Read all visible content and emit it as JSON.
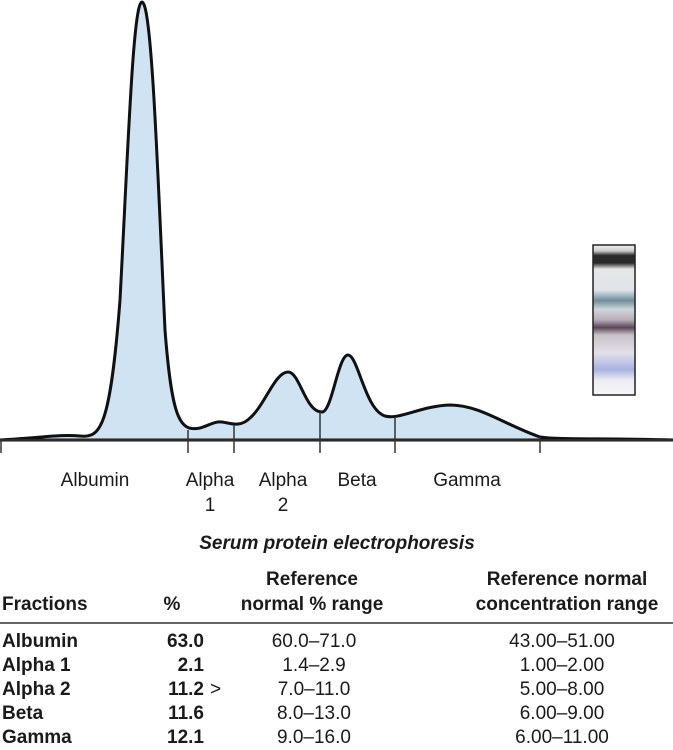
{
  "figure": {
    "fraction_labels": [
      [
        "Albumin"
      ],
      [
        "Alpha",
        "1"
      ],
      [
        "Alpha",
        "2"
      ],
      [
        "Beta"
      ],
      [
        "Gamma"
      ]
    ],
    "caption": "Serum protein electrophoresis"
  },
  "table": {
    "header": {
      "fractions": "Fractions",
      "percent": "%",
      "reference_percent": [
        "Reference",
        "normal % range"
      ],
      "reference_concentration": [
        "Reference normal",
        "concentration range"
      ]
    },
    "rows": [
      {
        "fraction": "Albumin",
        "percent": "63.0",
        "reference_percent": "60.0–71.0",
        "reference_concentration": "43.00–51.00"
      },
      {
        "fraction": "Alpha 1",
        "percent": "2.1",
        "reference_percent": "1.4–2.9",
        "reference_concentration": "1.00–2.00"
      },
      {
        "fraction": "Alpha 2",
        "percent": "11.2",
        "flag": ">",
        "reference_percent": "7.0–11.0",
        "reference_concentration": "5.00–8.00"
      },
      {
        "fraction": "Beta",
        "percent": "11.6",
        "reference_percent": "8.0–13.0",
        "reference_concentration": "6.00–9.00"
      },
      {
        "fraction": "Gamma",
        "percent": "12.1",
        "reference_percent": "9.0–16.0",
        "reference_concentration": "6.00–11.00"
      }
    ]
  }
}
